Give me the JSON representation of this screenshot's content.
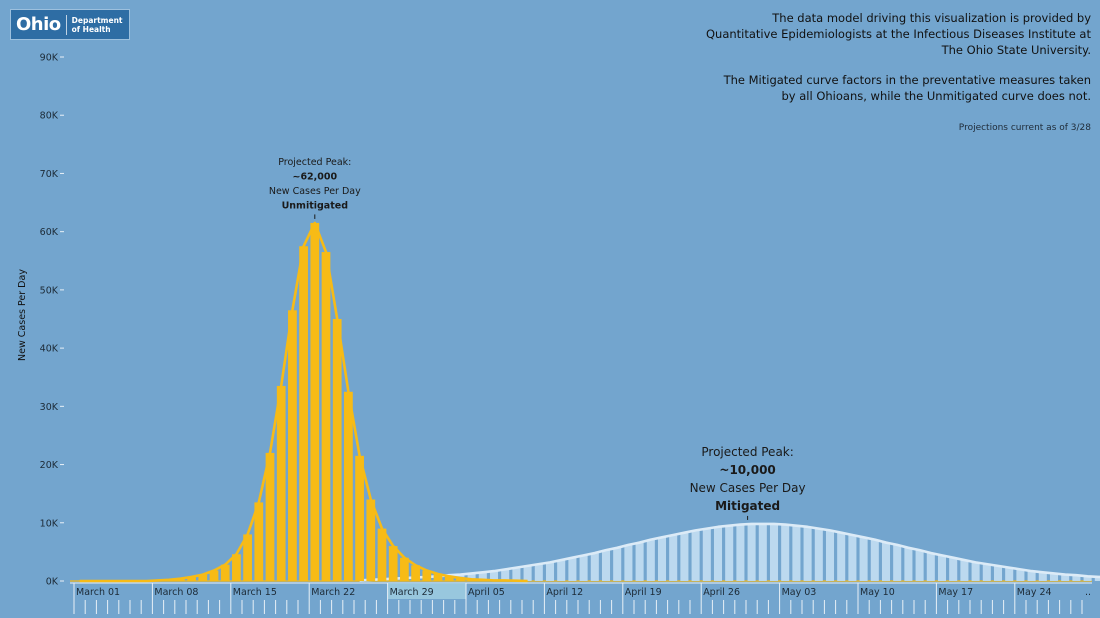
{
  "logo": {
    "word": "Ohio",
    "dept_line1": "Department",
    "dept_line2": "of Health"
  },
  "notes": {
    "model_lines": [
      "The data model driving this visualization is provided by",
      "Quantitative Epidemiologists at the Infectious Diseases Institute at",
      "The Ohio State University."
    ],
    "curve_lines": [
      "The Mitigated curve factors in the preventative measures taken",
      "by all Ohioans, while the Unmitigated curve does not."
    ],
    "current": "Projections current as of 3/28"
  },
  "colors": {
    "background": "#73a5ce",
    "unmitigated": "#f7bb16",
    "mitigated": "#bcd9ef"
  },
  "chart_data": {
    "type": "bar",
    "xlabel": "",
    "ylabel": "New Cases Per Day",
    "ylim": [
      0,
      90000
    ],
    "y_ticks": [
      "0K",
      "10K",
      "20K",
      "30K",
      "40K",
      "50K",
      "60K",
      "70K",
      "80K",
      "90K"
    ],
    "x_tick_labels": [
      "March 01",
      "March 08",
      "March 15",
      "March 22",
      "March 29",
      "April 05",
      "April 12",
      "April 19",
      "April 26",
      "May 03",
      "May 10",
      "May 17",
      "May 24",
      ".."
    ],
    "x_start_date": "2020-03-01",
    "series": [
      {
        "name": "Unmitigated",
        "start": "2020-03-01",
        "values": [
          0,
          0,
          0,
          0,
          0,
          0,
          0,
          100,
          200,
          400,
          700,
          1100,
          1800,
          2800,
          4600,
          8000,
          13500,
          22000,
          33500,
          46500,
          57500,
          61500,
          56500,
          45000,
          32500,
          21500,
          14000,
          9000,
          6000,
          4000,
          2700,
          1800,
          1200,
          800,
          500,
          300,
          200,
          100,
          100,
          50,
          0
        ]
      },
      {
        "name": "Mitigated",
        "start": "2020-03-26",
        "values": [
          100,
          200,
          300,
          400,
          500,
          600,
          700,
          800,
          1000,
          1100,
          1300,
          1500,
          1700,
          2000,
          2300,
          2600,
          2900,
          3200,
          3600,
          4000,
          4400,
          4800,
          5300,
          5700,
          6200,
          6600,
          7100,
          7500,
          7900,
          8300,
          8700,
          9000,
          9300,
          9500,
          9700,
          9800,
          9800,
          9800,
          9700,
          9500,
          9300,
          9000,
          8700,
          8300,
          7900,
          7500,
          7100,
          6600,
          6200,
          5700,
          5300,
          4800,
          4400,
          4000,
          3600,
          3200,
          2900,
          2600,
          2300,
          2000,
          1700,
          1500,
          1300,
          1100,
          1000,
          800,
          700,
          600,
          500,
          400,
          300,
          200,
          100
        ]
      }
    ],
    "annotations": [
      {
        "series": "Unmitigated",
        "line1": "Projected Peak:",
        "line2": "~62,000",
        "line3": "New Cases Per Day",
        "line4": "Unmitigated"
      },
      {
        "series": "Mitigated",
        "line1": "Projected Peak:",
        "line2": "~10,000",
        "line3": "New Cases Per Day",
        "line4": "Mitigated"
      }
    ]
  }
}
